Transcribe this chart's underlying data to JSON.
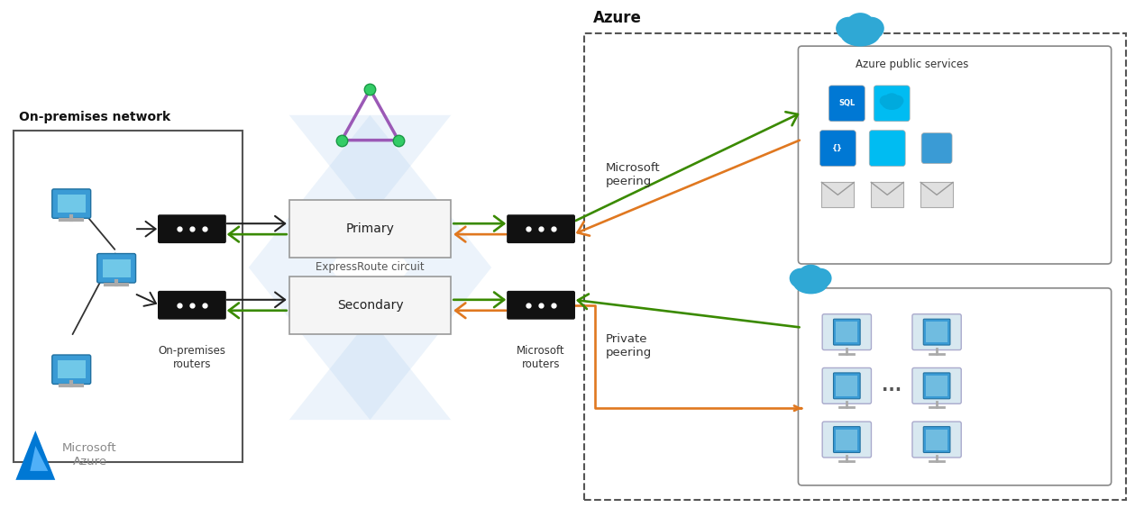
{
  "bg_color": "#ffffff",
  "on_premises_label": "On-premises network",
  "azure_label": "Azure",
  "primary_label": "Primary",
  "secondary_label": "Secondary",
  "expressroute_label": "ExpressRoute circuit",
  "on_premises_routers_label": "On-premises\nrouters",
  "microsoft_routers_label": "Microsoft\nrouters",
  "microsoft_peering_label": "Microsoft\npeering",
  "private_peering_label": "Private\npeering",
  "azure_public_services_label": "Azure public services",
  "ms_azure_text": "Microsoft\nAzure",
  "green_color": "#3a8a00",
  "orange_color": "#e07820",
  "black_router": "#111111",
  "gray_border": "#888888",
  "dark_text": "#222222",
  "light_blue_chevron": "#d0e8f8",
  "dashed_border": "#666666"
}
